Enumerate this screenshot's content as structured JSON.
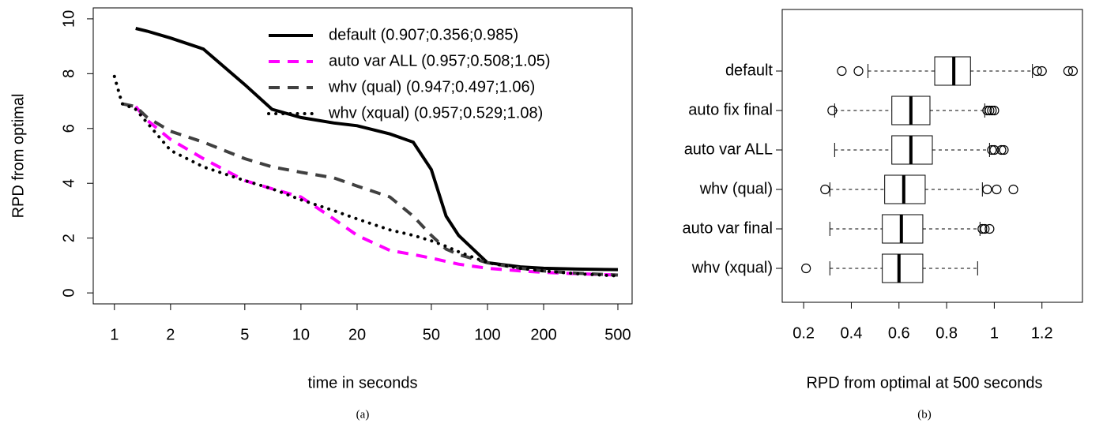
{
  "chart_data": [
    {
      "type": "line",
      "log_x": true,
      "legend": "top-right",
      "xlabel": "time in seconds",
      "ylabel": "RPD from optimal",
      "caption": "(a)",
      "x": [
        1,
        1.1,
        1.3,
        1.5,
        2,
        3,
        5,
        7,
        10,
        15,
        20,
        30,
        40,
        50,
        60,
        70,
        100,
        150,
        200,
        300,
        500
      ],
      "series": [
        {
          "name": "default (0.907;0.356;0.985)",
          "color": "#000000",
          "dash": "solid",
          "values": [
            null,
            null,
            9.65,
            9.55,
            9.3,
            8.9,
            7.6,
            6.7,
            6.4,
            6.2,
            6.1,
            5.8,
            5.5,
            4.5,
            2.8,
            2.1,
            1.1,
            0.95,
            0.9,
            0.87,
            0.85
          ]
        },
        {
          "name": "auto var ALL (0.957;0.508;1.05)",
          "color": "#ff00ff",
          "dash": "dashed",
          "values": [
            null,
            null,
            6.8,
            6.3,
            5.6,
            4.9,
            4.1,
            3.8,
            3.5,
            2.7,
            2.1,
            1.55,
            1.4,
            1.27,
            1.15,
            1.05,
            0.9,
            0.8,
            0.75,
            0.7,
            0.65
          ]
        },
        {
          "name": "whv (qual) (0.947;0.497;1.06)",
          "color": "#404040",
          "dash": "dashed",
          "values": [
            null,
            6.9,
            6.8,
            6.4,
            5.9,
            5.5,
            4.9,
            4.6,
            4.4,
            4.2,
            3.9,
            3.5,
            2.8,
            2.1,
            1.6,
            1.4,
            1.1,
            0.9,
            0.8,
            0.72,
            0.65
          ]
        },
        {
          "name": "whv (xqual) (0.957;0.529;1.08)",
          "color": "#000000",
          "dash": "dotted",
          "values": [
            7.9,
            6.9,
            6.7,
            6.2,
            5.2,
            4.6,
            4.1,
            3.8,
            3.4,
            3.0,
            2.7,
            2.3,
            2.1,
            1.9,
            1.7,
            1.5,
            1.1,
            0.9,
            0.8,
            0.7,
            0.62
          ]
        }
      ],
      "xlim": [
        0.77,
        596
      ],
      "xticks": [
        1,
        2,
        5,
        10,
        20,
        50,
        100,
        200,
        500
      ],
      "ylim": [
        -0.4,
        10.4
      ],
      "yticks": [
        0,
        2,
        4,
        6,
        8,
        10
      ]
    },
    {
      "type": "boxplot",
      "orientation": "horizontal",
      "xlabel": "RPD from optimal at 500 seconds",
      "caption": "(b)",
      "categories": [
        "default",
        "auto fix final",
        "auto var ALL",
        "whv (qual)",
        "auto var final",
        "whv (xqual)"
      ],
      "boxes": [
        {
          "whisker_low": 0.47,
          "q1": 0.75,
          "median": 0.83,
          "q3": 0.9,
          "whisker_high": 1.16,
          "outliers": [
            0.36,
            0.43,
            1.18,
            1.2,
            1.31,
            1.33
          ]
        },
        {
          "whisker_low": 0.33,
          "q1": 0.57,
          "median": 0.65,
          "q3": 0.73,
          "whisker_high": 0.96,
          "outliers": [
            0.32,
            0.97,
            0.98,
            0.99,
            1.0
          ]
        },
        {
          "whisker_low": 0.33,
          "q1": 0.57,
          "median": 0.65,
          "q3": 0.74,
          "whisker_high": 0.98,
          "outliers": [
            0.99,
            1.0,
            1.03,
            1.04
          ]
        },
        {
          "whisker_low": 0.31,
          "q1": 0.54,
          "median": 0.62,
          "q3": 0.71,
          "whisker_high": 0.95,
          "outliers": [
            0.29,
            0.97,
            1.01,
            1.08
          ]
        },
        {
          "whisker_low": 0.31,
          "q1": 0.53,
          "median": 0.61,
          "q3": 0.7,
          "whisker_high": 0.94,
          "outliers": [
            0.95,
            0.96,
            0.98
          ]
        },
        {
          "whisker_low": 0.31,
          "q1": 0.53,
          "median": 0.6,
          "q3": 0.7,
          "whisker_high": 0.93,
          "outliers": [
            0.21
          ]
        }
      ],
      "xlim": [
        0.11,
        1.37
      ],
      "xticks": [
        0.2,
        0.4,
        0.6,
        0.8,
        1.0,
        1.2
      ]
    }
  ]
}
